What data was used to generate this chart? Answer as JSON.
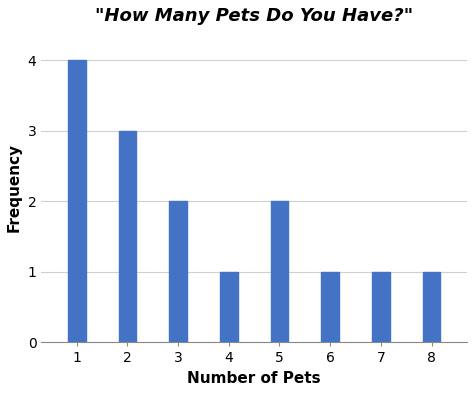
{
  "categories": [
    1,
    2,
    3,
    4,
    5,
    6,
    7,
    8
  ],
  "values": [
    4,
    3,
    2,
    1,
    2,
    1,
    1,
    1
  ],
  "bar_color": "#4472C4",
  "title": "\"How Many Pets Do You Have?\"",
  "xlabel": "Number of Pets",
  "ylabel": "Frequency",
  "ylim": [
    0,
    4.4
  ],
  "yticks": [
    0,
    1,
    2,
    3,
    4
  ],
  "background_color": "#ffffff",
  "title_fontsize": 13,
  "label_fontsize": 11,
  "tick_fontsize": 10,
  "bar_width": 0.35
}
